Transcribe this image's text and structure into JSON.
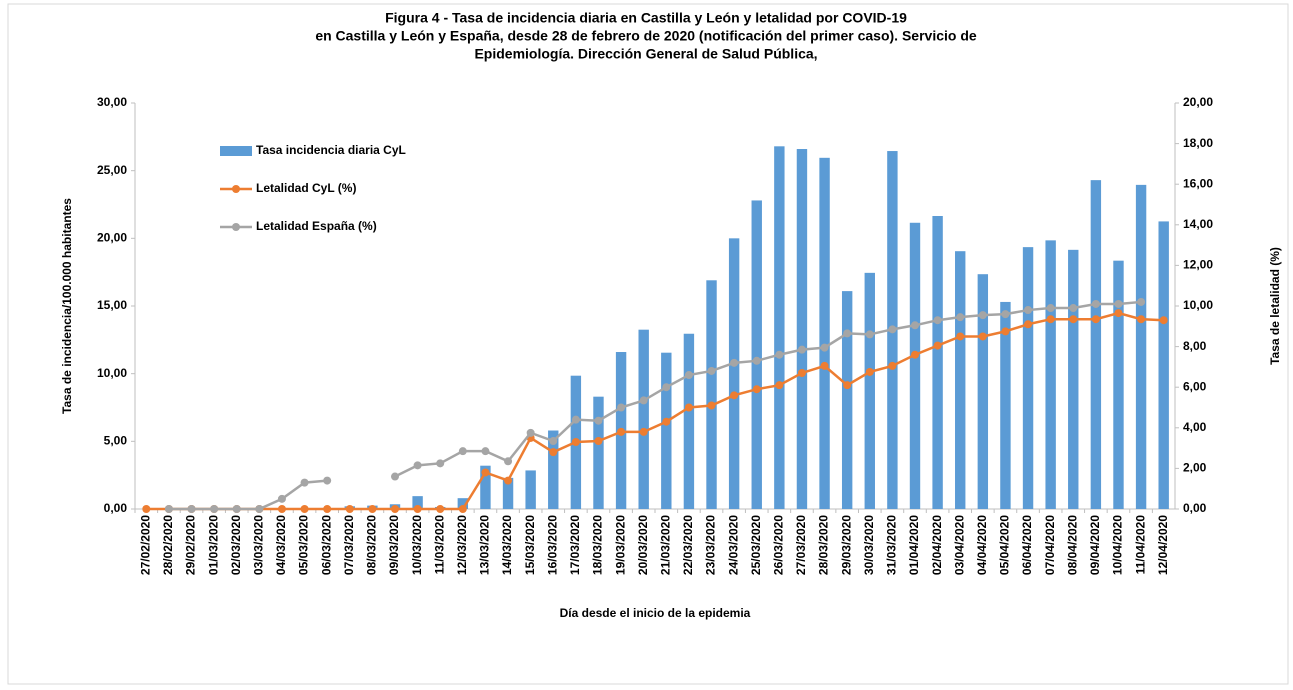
{
  "chart_data": {
    "type": "bar-line",
    "title": [
      "Figura 4 - Tasa de incidencia diaria en Castilla y León y letalidad por COVID-19",
      "en Castilla y León y España, desde 28 de febrero de 2020 (notificación del primer caso). Servicio de",
      "Epidemiología. Dirección General de Salud Pública,"
    ],
    "x_label": "Día desde el inicio de la epidemia",
    "y_label": "Tasa de incidencia/100.000 habitantes",
    "y2_label": "Tasa de letalidad (%)",
    "legend": "upper left",
    "grid": false,
    "categories": [
      "27/02/2020",
      "28/02/2020",
      "29/02/2020",
      "01/03/2020",
      "02/03/2020",
      "03/03/2020",
      "04/03/2020",
      "05/03/2020",
      "06/03/2020",
      "07/03/2020",
      "08/03/2020",
      "09/03/2020",
      "10/03/2020",
      "11/03/2020",
      "12/03/2020",
      "13/03/2020",
      "14/03/2020",
      "15/03/2020",
      "16/03/2020",
      "17/03/2020",
      "18/03/2020",
      "19/03/2020",
      "20/03/2020",
      "21/03/2020",
      "22/03/2020",
      "23/03/2020",
      "24/03/2020",
      "25/03/2020",
      "26/03/2020",
      "27/03/2020",
      "28/03/2020",
      "29/03/2020",
      "30/03/2020",
      "31/03/2020",
      "01/04/2020",
      "02/04/2020",
      "03/04/2020",
      "04/04/2020",
      "05/04/2020",
      "06/04/2020",
      "07/04/2020",
      "08/04/2020",
      "09/04/2020",
      "10/04/2020",
      "11/04/2020",
      "12/04/2020"
    ],
    "series": [
      {
        "name": "Tasa incidencia diaria CyL",
        "type": "bar",
        "color": "#5b9bd5",
        "values": [
          0,
          0,
          0,
          0,
          0,
          0,
          0,
          0,
          0.05,
          0.2,
          0.25,
          0.35,
          0.95,
          0.15,
          0.8,
          3.2,
          2.3,
          2.85,
          5.8,
          9.85,
          8.3,
          11.6,
          13.25,
          11.55,
          12.95,
          16.9,
          20.0,
          22.8,
          26.8,
          26.6,
          25.95,
          16.1,
          17.45,
          26.45,
          21.15,
          21.65,
          19.05,
          17.35,
          15.3,
          19.35,
          19.85,
          19.15,
          24.3,
          18.35,
          23.95,
          21.25
        ]
      },
      {
        "name": "Letalidad CyL (%)",
        "type": "line",
        "axis": "y2",
        "color": "#ed7d31",
        "values": [
          0,
          0,
          0,
          0,
          0,
          0,
          0,
          0,
          0,
          0,
          0,
          0,
          0,
          0,
          0,
          1.8,
          1.4,
          3.5,
          2.8,
          3.3,
          3.35,
          3.8,
          3.8,
          4.3,
          5.0,
          5.1,
          5.6,
          5.9,
          6.1,
          6.7,
          7.05,
          6.1,
          6.75,
          7.05,
          7.6,
          8.05,
          8.5,
          8.5,
          8.75,
          9.1,
          9.35,
          9.35,
          9.35,
          9.65,
          9.35,
          9.3
        ]
      },
      {
        "name": "Letalidad España (%)",
        "type": "line",
        "axis": "y2",
        "color": "#a5a5a5",
        "values": [
          null,
          0,
          0,
          0,
          0,
          0,
          0.5,
          1.3,
          1.4,
          null,
          null,
          1.6,
          2.15,
          2.25,
          2.85,
          2.85,
          2.35,
          3.75,
          3.35,
          4.4,
          4.35,
          5.0,
          5.35,
          6.0,
          6.6,
          6.8,
          7.2,
          7.3,
          7.6,
          7.85,
          7.95,
          8.65,
          8.6,
          8.85,
          9.05,
          9.3,
          9.45,
          9.55,
          9.6,
          9.8,
          9.9,
          9.9,
          10.1,
          10.1,
          10.2,
          null
        ]
      }
    ],
    "ylim": [
      0,
      30
    ],
    "yticks": [
      {
        "value": 0,
        "label": "0,00"
      },
      {
        "value": 5,
        "label": "5,00"
      },
      {
        "value": 10,
        "label": "10,00"
      },
      {
        "value": 15,
        "label": "15,00"
      },
      {
        "value": 20,
        "label": "20,00"
      },
      {
        "value": 25,
        "label": "25,00"
      },
      {
        "value": 30,
        "label": "30,00"
      }
    ],
    "y2lim": [
      0,
      20
    ],
    "y2ticks": [
      {
        "value": 0,
        "label": "0,00"
      },
      {
        "value": 2,
        "label": "2,00"
      },
      {
        "value": 4,
        "label": "4,00"
      },
      {
        "value": 6,
        "label": "6,00"
      },
      {
        "value": 8,
        "label": "8,00"
      },
      {
        "value": 10,
        "label": "10,00"
      },
      {
        "value": 12,
        "label": "12,00"
      },
      {
        "value": 14,
        "label": "14,00"
      },
      {
        "value": 16,
        "label": "16,00"
      },
      {
        "value": 18,
        "label": "18,00"
      },
      {
        "value": 20,
        "label": "20,00"
      }
    ]
  }
}
